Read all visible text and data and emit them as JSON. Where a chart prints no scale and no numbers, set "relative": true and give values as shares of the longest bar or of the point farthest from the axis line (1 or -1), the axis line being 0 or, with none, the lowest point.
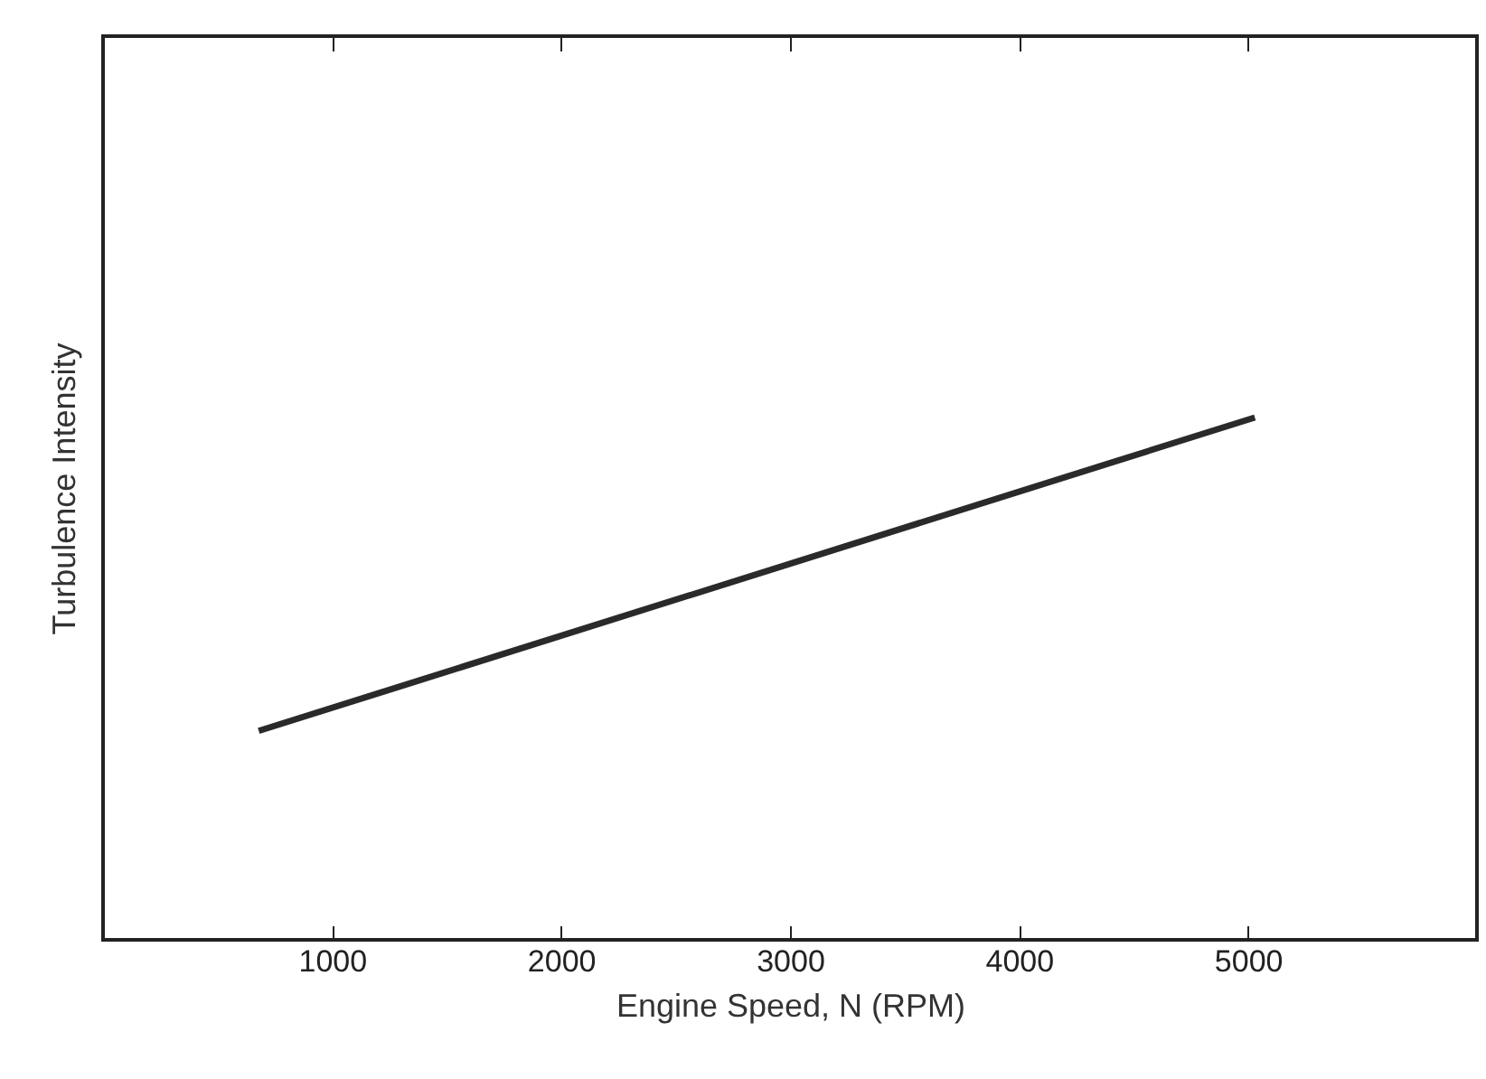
{
  "chart_data": {
    "type": "line",
    "xlabel": "Engine Speed, N (RPM)",
    "ylabel": "Turbulence Intensity",
    "relative": true,
    "x": [
      680,
      5030
    ],
    "series": [
      {
        "color": "#2a2a2a",
        "values": [
          0.4,
          1
        ]
      }
    ],
    "xlim": [
      0,
      6000
    ],
    "xticks": [
      1000,
      2000,
      3000,
      4000,
      5000
    ],
    "grid": false,
    "marker": "none",
    "line_style": "solid"
  }
}
